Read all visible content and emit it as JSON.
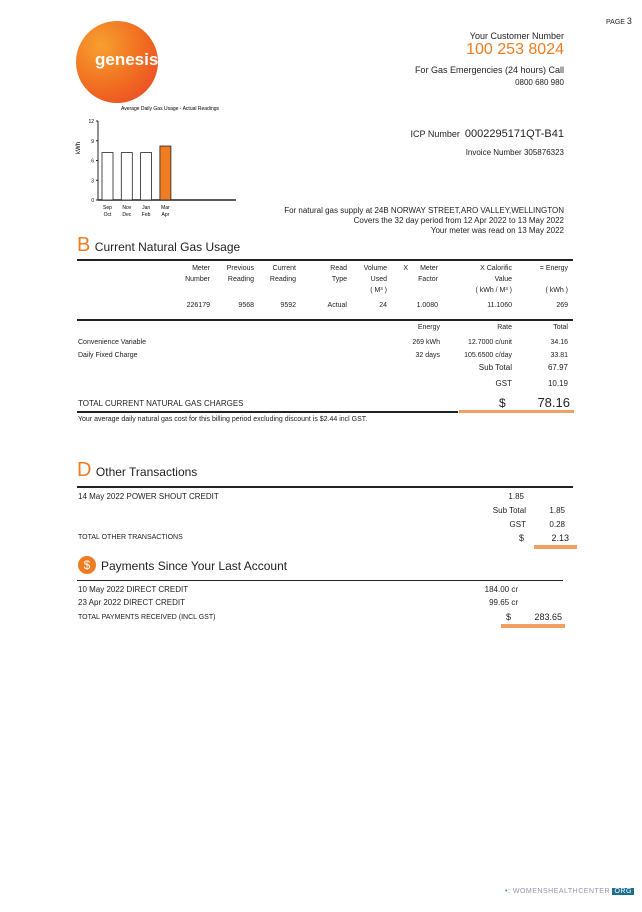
{
  "page": {
    "label": "PAGE",
    "number": "3"
  },
  "brand": {
    "name": "genesis",
    "color": "#f07c22"
  },
  "header": {
    "customer_number_label": "Your Customer Number",
    "customer_number": "100 253 8024",
    "emergency_label": "For Gas Emergencies (24 hours) Call",
    "emergency_phone": "0800 680 980",
    "icp_label": "ICP  Number",
    "icp": "0002295171QT-B41",
    "invoice_label": "Invoice  Number",
    "invoice": "305876323"
  },
  "supply": {
    "line1": "For natural gas supply at 24B NORWAY STREET,ARO VALLEY,WELLINGTON",
    "line2": "Covers the 32 day period from 12 Apr 2022 to 13 May 2022",
    "line3": "Your meter was read on 13 May 2022"
  },
  "chart_data": {
    "type": "bar",
    "title": "Average Daily Gas Usage - Actual Readings",
    "ylabel": "kWh",
    "ylim": [
      0,
      12
    ],
    "yticks": [
      "0",
      "3",
      "6",
      "9",
      "12"
    ],
    "categories": [
      [
        "Sep",
        "Oct"
      ],
      [
        "Nov",
        "Dec"
      ],
      [
        "Jan",
        "Feb"
      ],
      [
        "Mar",
        "Apr"
      ]
    ],
    "values": [
      7.2,
      7.2,
      7.2,
      8.2
    ],
    "highlight_index": 3
  },
  "usage": {
    "letter": "B",
    "title": "Current Natural Gas Usage",
    "headers": [
      [
        "Meter",
        "Number",
        ""
      ],
      [
        "Previous",
        "Reading",
        ""
      ],
      [
        "Current",
        "Reading",
        ""
      ],
      [
        "Read",
        "Type",
        ""
      ],
      [
        "Volume",
        "Used",
        "( M³ )"
      ],
      [
        "X",
        "",
        ""
      ],
      [
        "Meter",
        "Factor",
        ""
      ],
      [
        "X Calorific",
        "Value",
        "( kWh / M³ )"
      ],
      [
        "= Energy",
        "",
        "( kWh )"
      ]
    ],
    "row": [
      "226179",
      "9568",
      "9592",
      "Actual",
      "24",
      "",
      "1.0080",
      "11.1060",
      "269"
    ],
    "charge_headers": [
      "Energy",
      "Rate",
      "Total"
    ],
    "charges": [
      {
        "label": "Convenience Variable",
        "energy": "269 kWh",
        "rate": "12.7000 c/unit",
        "total": "34.16"
      },
      {
        "label": "Daily Fixed Charge",
        "energy": "32 days",
        "rate": "105.6500 c/day",
        "total": "33.81"
      }
    ],
    "subtotal_label": "Sub Total",
    "subtotal": "67.97",
    "gst_label": "GST",
    "gst": "10.19",
    "total_label": "TOTAL CURRENT NATURAL GAS CHARGES",
    "currency": "$",
    "total": "78.16",
    "note": "Your average daily natural gas cost for this billing period excluding discount is $2.44 incl GST."
  },
  "other": {
    "letter": "D",
    "title": "Other Transactions",
    "items": [
      {
        "label": "14 May 2022 POWER SHOUT CREDIT",
        "amount": "1.85"
      }
    ],
    "subtotal_label": "Sub Total",
    "subtotal": "1.85",
    "gst_label": "GST",
    "gst": "0.28",
    "total_label": "TOTAL OTHER TRANSACTIONS",
    "currency": "$",
    "total": "2.13"
  },
  "payments": {
    "letter": "$",
    "title": "Payments Since Your Last Account",
    "items": [
      {
        "label": "10 May 2022 DIRECT CREDIT",
        "amount": "184.00 cr"
      },
      {
        "label": "23 Apr 2022 DIRECT CREDIT",
        "amount": "99.65 cr"
      }
    ],
    "total_label": "TOTAL PAYMENTS RECEIVED (INCL GST)",
    "currency": "$",
    "total": "283.65"
  },
  "watermark": {
    "text": "WOMENSHEALTHCENTER",
    "suffix": "ORG"
  }
}
